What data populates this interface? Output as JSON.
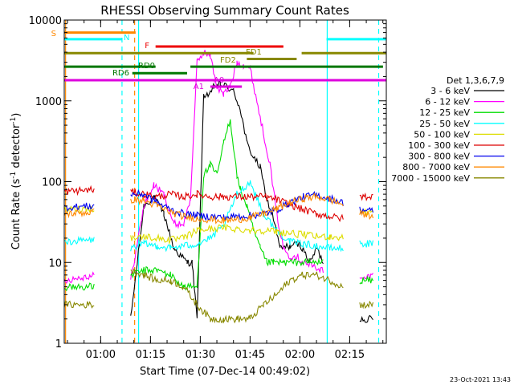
{
  "chart_data": {
    "type": "line",
    "title": "RHESSI Observing Summary Count Rates",
    "xlabel": "Start Time (07-Dec-14 00:49:02)",
    "ylabel_main": "Count Rate (s",
    "ylabel_sup1": "-1",
    "ylabel_mid": " detector",
    "ylabel_sup2": "-1",
    "ylabel_end": ")",
    "x_unit": "minutes since 00:49:02",
    "xlim": [
      0,
      97
    ],
    "ylim": [
      1,
      10000
    ],
    "yscale": "log",
    "x_ticks": [
      {
        "x": 10.97,
        "label": "01:00"
      },
      {
        "x": 25.97,
        "label": "01:15"
      },
      {
        "x": 40.97,
        "label": "01:30"
      },
      {
        "x": 55.97,
        "label": "01:45"
      },
      {
        "x": 70.97,
        "label": "02:00"
      },
      {
        "x": 85.97,
        "label": "02:15"
      }
    ],
    "y_ticks": [
      {
        "v": 1,
        "label": "1"
      },
      {
        "v": 10,
        "label": "10"
      },
      {
        "v": 100,
        "label": "100"
      },
      {
        "v": 1000,
        "label": "1000"
      },
      {
        "v": 10000,
        "label": "10000"
      }
    ],
    "legend_title": "Det 1,3,6,7,9",
    "legend_placement": "right",
    "series": [
      {
        "name": "3 - 6 keV",
        "color": "#000000",
        "x": [
          0,
          9,
          18,
          20,
          24,
          27,
          30,
          33,
          37,
          38.5,
          40,
          42,
          44,
          45,
          47,
          49,
          51,
          53,
          55,
          57,
          59,
          61,
          63,
          65,
          68,
          71,
          74,
          76,
          78,
          83,
          87,
          89,
          93,
          97
        ],
        "y": [
          null,
          null,
          null,
          2,
          50,
          65,
          40,
          15,
          10,
          10,
          2,
          1200,
          1200,
          1500,
          1600,
          1500,
          1300,
          800,
          300,
          200,
          150,
          60,
          35,
          15,
          16,
          17,
          10,
          15,
          10,
          null,
          null,
          2,
          2,
          null
        ]
      },
      {
        "name": "6 - 12 keV",
        "color": "#ff00ff",
        "x": [
          0,
          9,
          18,
          20,
          24,
          27,
          30,
          33,
          36,
          38,
          40,
          42,
          44,
          46,
          48,
          50,
          52,
          54,
          56,
          58,
          60,
          62,
          64,
          66,
          68,
          70,
          72,
          75,
          78,
          83,
          88,
          89,
          93,
          97
        ],
        "y": [
          6,
          7,
          null,
          6,
          50,
          90,
          70,
          30,
          30,
          60,
          3000,
          4000,
          3600,
          1500,
          1200,
          1500,
          3000,
          2800,
          2500,
          1000,
          400,
          160,
          40,
          15,
          12,
          12,
          10,
          9,
          8,
          null,
          null,
          6,
          7,
          null
        ],
        "x_gaps": [
          [
            9,
            18
          ],
          [
            78,
            88
          ]
        ]
      },
      {
        "name": "12 - 25 keV",
        "color": "#00dd00",
        "x": [
          0,
          9,
          18,
          20,
          24,
          28,
          32,
          36,
          40,
          42,
          44,
          46,
          48,
          50,
          52,
          53,
          55,
          57,
          59,
          61,
          63,
          66,
          70,
          74,
          78,
          88,
          89,
          93,
          97
        ],
        "y": [
          5,
          5,
          null,
          7,
          8,
          8,
          7,
          5,
          5,
          120,
          160,
          120,
          300,
          600,
          120,
          80,
          50,
          25,
          15,
          10,
          10,
          10,
          10,
          10,
          10,
          null,
          6,
          6,
          null
        ]
      },
      {
        "name": "25 - 50 keV",
        "color": "#00ffff",
        "x": [
          0,
          9,
          18,
          20,
          24,
          28,
          32,
          36,
          40,
          44,
          48,
          52,
          56,
          60,
          64,
          68,
          72,
          76,
          80,
          84,
          88,
          89,
          93,
          97
        ],
        "y": [
          18,
          19,
          null,
          15,
          17,
          16,
          15,
          16,
          17,
          20,
          28,
          70,
          100,
          40,
          25,
          18,
          17,
          16,
          15,
          15,
          null,
          17,
          17,
          null
        ]
      },
      {
        "name": "50 - 100 keV",
        "color": "#dddd00",
        "x": [
          0,
          9,
          18,
          20,
          24,
          28,
          32,
          36,
          40,
          44,
          48,
          52,
          56,
          60,
          64,
          68,
          72,
          76,
          80,
          84,
          88,
          89,
          93,
          97
        ],
        "y": [
          45,
          47,
          null,
          20,
          21,
          20,
          19,
          20,
          25,
          26,
          27,
          26,
          25,
          25,
          24,
          23,
          22,
          21,
          21,
          20,
          null,
          42,
          42,
          null
        ]
      },
      {
        "name": "100 - 300 keV",
        "color": "#dd0000",
        "x": [
          0,
          9,
          18,
          20,
          24,
          28,
          32,
          36,
          40,
          44,
          48,
          52,
          56,
          60,
          64,
          68,
          72,
          76,
          80,
          84,
          88,
          89,
          93,
          97
        ],
        "y": [
          75,
          80,
          null,
          75,
          70,
          65,
          70,
          65,
          70,
          65,
          65,
          65,
          65,
          65,
          60,
          52,
          45,
          40,
          37,
          35,
          null,
          65,
          66,
          null
        ]
      },
      {
        "name": "300 - 800 keV",
        "color": "#0000ee",
        "x": [
          0,
          9,
          18,
          20,
          24,
          28,
          32,
          36,
          40,
          44,
          48,
          52,
          56,
          60,
          64,
          68,
          72,
          76,
          80,
          84,
          88,
          89,
          93,
          97
        ],
        "y": [
          48,
          50,
          null,
          70,
          70,
          55,
          45,
          40,
          38,
          37,
          36,
          37,
          38,
          40,
          45,
          55,
          65,
          68,
          62,
          55,
          null,
          45,
          43,
          null
        ]
      },
      {
        "name": "800 - 7000 keV",
        "color": "#ff8800",
        "x": [
          0,
          9,
          18,
          20,
          24,
          28,
          32,
          36,
          40,
          44,
          48,
          52,
          56,
          60,
          64,
          68,
          72,
          76,
          80,
          84,
          88,
          89,
          93,
          97
        ],
        "y": [
          40,
          42,
          null,
          60,
          58,
          50,
          42,
          37,
          35,
          34,
          33,
          34,
          36,
          40,
          46,
          55,
          62,
          65,
          60,
          52,
          null,
          40,
          38,
          null
        ]
      },
      {
        "name": "7000 - 15000 keV",
        "color": "#888800",
        "x": [
          0,
          9,
          18,
          20,
          24,
          28,
          32,
          36,
          40,
          44,
          48,
          52,
          56,
          60,
          64,
          68,
          72,
          76,
          80,
          84,
          88,
          89,
          93,
          97
        ],
        "y": [
          3,
          3,
          null,
          8,
          7,
          6,
          6,
          5,
          3,
          2,
          2,
          2,
          2,
          3,
          4,
          6,
          7,
          7,
          6,
          5,
          null,
          3,
          3,
          null
        ]
      }
    ],
    "annotations": [
      {
        "label": "S",
        "color": "#ff8800",
        "y": 7000,
        "x1": 0,
        "x2": 21.5
      },
      {
        "label": "N",
        "color": "#00ffff",
        "y": 5800,
        "x1": 0,
        "x2": 17.5
      },
      {
        "label": "N",
        "color": "#00ffff",
        "y": 5800,
        "x1": 79,
        "x2": 97
      },
      {
        "label": "F",
        "color": "#ee0000",
        "y": 4700,
        "x1": 27.5,
        "x2": 66
      },
      {
        "label": "FD1",
        "color": "#888800",
        "y": 3900,
        "x1": 0,
        "x2": 57
      },
      {
        "label": "FD1",
        "color": "#888800",
        "y": 3900,
        "x1": 71.5,
        "x2": 97
      },
      {
        "label": "FD2",
        "color": "#888800",
        "y": 3300,
        "x1": 55,
        "x2": 70
      },
      {
        "label": "RD0",
        "color": "#007700",
        "y": 2650,
        "x1": 0,
        "x2": 27.5
      },
      {
        "label": "RD0",
        "color": "#007700",
        "y": 2650,
        "x1": 38,
        "x2": 96
      },
      {
        "label": "RD6",
        "color": "#007700",
        "y": 2200,
        "x1": 20.5,
        "x2": 37
      },
      {
        "label": "A1",
        "color": "#dd00dd",
        "y": 1500,
        "x1": 44,
        "x2": 53.5
      },
      {
        "label": "A0",
        "color": "#dd00dd",
        "y": 1800,
        "x1": 0,
        "x2": 97
      }
    ],
    "vlines": [
      {
        "x": 0.4,
        "color": "#ff8800",
        "style": "solid"
      },
      {
        "x": 17.4,
        "color": "#00ffff",
        "style": "dashed"
      },
      {
        "x": 21.2,
        "color": "#ff8800",
        "style": "dashed"
      },
      {
        "x": 22.4,
        "color": "#00ffff",
        "style": "solid"
      },
      {
        "x": 79.2,
        "color": "#00ffff",
        "style": "solid"
      },
      {
        "x": 94.7,
        "color": "#00ffff",
        "style": "dashed"
      }
    ]
  },
  "footer": {
    "timestamp": "23-Oct-2021 13:43"
  }
}
